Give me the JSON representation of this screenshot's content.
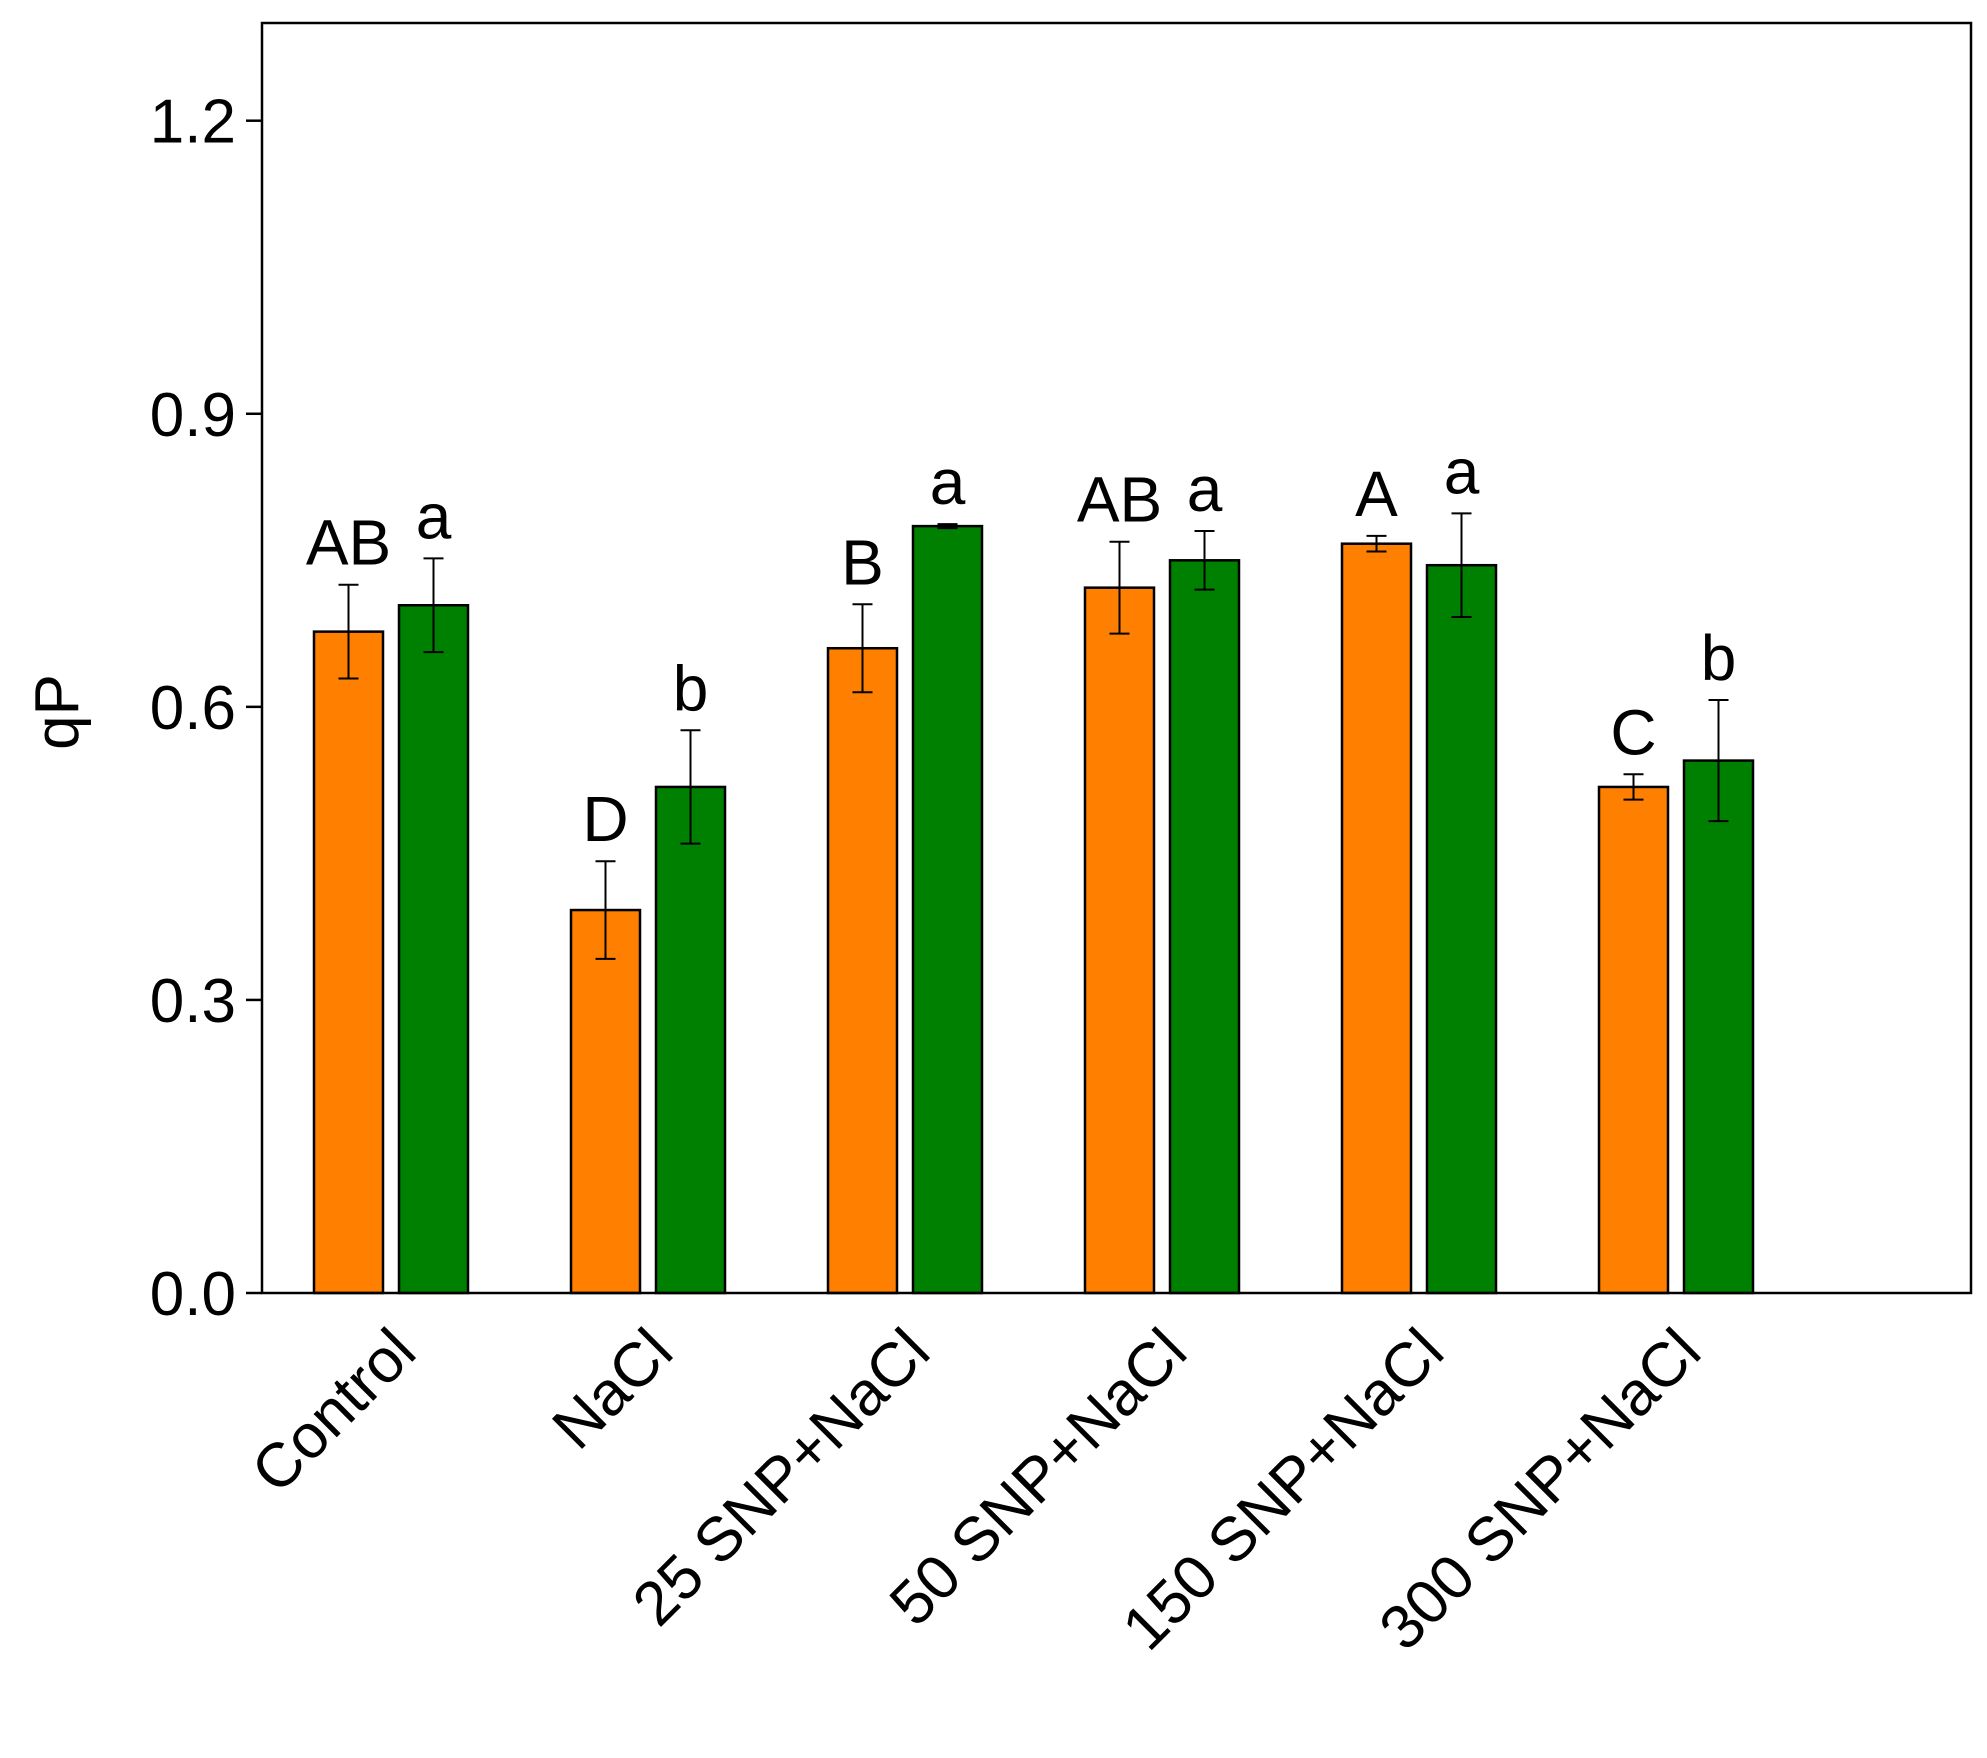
{
  "chart_data": {
    "type": "bar",
    "title": "",
    "xlabel": "",
    "ylabel": "qP",
    "ylim": [
      0,
      1.3
    ],
    "yticks": [
      0.0,
      0.3,
      0.6,
      0.9,
      1.2
    ],
    "ytick_labels": [
      "0.0",
      "0.3",
      "0.6",
      "0.9",
      "1.2"
    ],
    "grid": false,
    "legend": "none",
    "categories": [
      "Control",
      "NaCl",
      "25 SNP+NaCl",
      "50 SNP+NaCl",
      "150 SNP+NaCl",
      "300 SNP+NaCl"
    ],
    "series": [
      {
        "name": "orange",
        "color": "#ff8000",
        "values": [
          0.677,
          0.392,
          0.66,
          0.722,
          0.767,
          0.518
        ],
        "errors": [
          0.048,
          0.05,
          0.045,
          0.047,
          0.008,
          0.013
        ],
        "labels": [
          "AB",
          "D",
          "B",
          "AB",
          "A",
          "C"
        ]
      },
      {
        "name": "green",
        "color": "#008000",
        "values": [
          0.704,
          0.518,
          0.785,
          0.75,
          0.745,
          0.545
        ],
        "errors": [
          0.048,
          0.058,
          0.002,
          0.03,
          0.053,
          0.062
        ],
        "labels": [
          "a",
          "b",
          "a",
          "a",
          "a",
          "b"
        ]
      }
    ]
  }
}
